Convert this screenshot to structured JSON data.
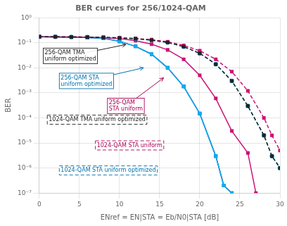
{
  "chart_data": {
    "type": "line",
    "title": "BER curves for 256/1024-QAM",
    "xlabel": "ENref = EN|STA = Eb/N0|STA [dB]",
    "ylabel": "BER",
    "log": "y",
    "grid": true,
    "xlim": [
      0,
      30
    ],
    "xticks": [
      0,
      5,
      10,
      15,
      20,
      25,
      30
    ],
    "ylim": [
      1e-07,
      1
    ],
    "yticks": [
      {
        "value": 1e-07,
        "label": "10⁻⁷"
      },
      {
        "value": 1e-06,
        "label": "10⁻⁶"
      },
      {
        "value": 1e-05,
        "label": "10⁻⁵"
      },
      {
        "value": 0.0001,
        "label": "10⁻⁴"
      },
      {
        "value": 0.001,
        "label": "10⁻³"
      },
      {
        "value": 0.01,
        "label": "10⁻²"
      },
      {
        "value": 0.1,
        "label": "10⁻¹"
      },
      {
        "value": 1,
        "label": "10⁰"
      }
    ],
    "series": [
      {
        "color": "#222222",
        "marker": "square",
        "line_style": "dashed",
        "x": [
          0,
          2,
          4,
          6,
          8,
          10,
          12,
          14,
          16,
          18,
          20,
          22,
          24,
          26,
          28,
          29,
          30
        ],
        "values": [
          0.175,
          0.173,
          0.171,
          0.168,
          0.163,
          0.156,
          0.145,
          0.128,
          0.103,
          0.07,
          0.038,
          0.014,
          0.003,
          0.0003,
          2e-05,
          3e-06,
          1e-06
        ]
      },
      {
        "color": "#cc1177",
        "marker": "square",
        "line_style": "dashed",
        "x": [
          0,
          2,
          4,
          6,
          8,
          10,
          12,
          14,
          16,
          18,
          20,
          22,
          24,
          26,
          28,
          29,
          30
        ],
        "values": [
          0.175,
          0.173,
          0.171,
          0.168,
          0.164,
          0.158,
          0.148,
          0.133,
          0.11,
          0.079,
          0.048,
          0.022,
          0.007,
          0.0012,
          0.0001,
          2e-05,
          5e-06
        ]
      },
      {
        "color": "#00b0f0",
        "marker": "circle",
        "line_style": "dashed",
        "x": [
          0,
          2,
          4,
          6,
          8,
          10,
          12,
          14,
          16,
          18,
          20,
          22,
          24,
          26,
          28,
          29,
          30
        ],
        "values": [
          0.175,
          0.173,
          0.171,
          0.168,
          0.163,
          0.156,
          0.145,
          0.128,
          0.103,
          0.07,
          0.038,
          0.014,
          0.003,
          0.0003,
          2e-05,
          3e-06,
          1e-06
        ]
      },
      {
        "color": "#cc1177",
        "marker": "square",
        "line_style": "solid",
        "x": [
          0,
          2,
          4,
          6,
          8,
          10,
          12,
          14,
          16,
          18,
          20,
          22,
          24,
          26,
          27
        ],
        "values": [
          0.175,
          0.172,
          0.17,
          0.167,
          0.161,
          0.148,
          0.122,
          0.088,
          0.052,
          0.022,
          0.005,
          0.0006,
          3e-05,
          4e-06,
          1e-07
        ]
      },
      {
        "color": "#00b0f0",
        "marker": "square",
        "line_style": "solid",
        "x": [
          0,
          2,
          4,
          6,
          8,
          10,
          12,
          14,
          16,
          18,
          20,
          22,
          23,
          24
        ],
        "values": [
          0.175,
          0.172,
          0.168,
          0.162,
          0.15,
          0.115,
          0.072,
          0.035,
          0.01,
          0.0018,
          0.00015,
          3e-06,
          2e-07,
          1e-07
        ]
      },
      {
        "color": "#1a1a8a",
        "marker": "square",
        "line_style": "solid",
        "x": [
          0,
          2,
          4,
          6,
          8,
          10,
          12,
          14,
          16,
          18,
          20,
          22,
          23,
          24
        ],
        "values": [
          0.175,
          0.172,
          0.168,
          0.162,
          0.15,
          0.115,
          0.072,
          0.035,
          0.01,
          0.0018,
          0.00015,
          3e-06,
          2e-07,
          1e-07
        ]
      }
    ],
    "annotations": [
      {
        "text": "256-QAM TMA\nuniform optimized",
        "x": 0.5,
        "y": 0.03,
        "color": "#222222",
        "line_style": "solid",
        "arrow": [
          10.8,
          0.085
        ]
      },
      {
        "text": "256-QAM STA\nuniform optimized",
        "x": 2.5,
        "y": 0.003,
        "color": "#0070aa",
        "line_style": "solid",
        "arrow": [
          13.0,
          0.01
        ]
      },
      {
        "text": "256-QAM\nSTA uniform",
        "x": 8.5,
        "y": 0.0003,
        "color": "#aa0055",
        "line_style": "solid",
        "arrow": [
          15.5,
          0.004
        ]
      },
      {
        "text": "1024-QAM TMA uniform optimized",
        "x": 1.0,
        "y": 8.5e-05,
        "color": "#222222",
        "line_style": "dashed"
      },
      {
        "text": "1024-QAM STA uniform",
        "x": 7.0,
        "y": 8e-06,
        "color": "#aa0055",
        "line_style": "dashed"
      },
      {
        "text": "1024-QAM STA uniform optimized",
        "x": 2.5,
        "y": 8e-07,
        "color": "#0070aa",
        "line_style": "dashed"
      }
    ]
  }
}
